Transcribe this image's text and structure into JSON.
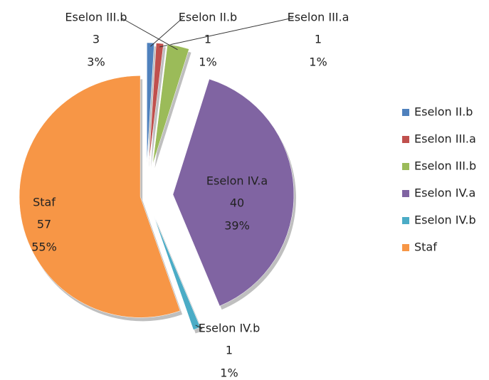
{
  "chart_data": {
    "type": "pie",
    "categories": [
      "Eselon II.b",
      "Eselon III.a",
      "Eselon III.b",
      "Eselon IV.a",
      "Eselon IV.b",
      "Staf"
    ],
    "values": [
      1,
      1,
      3,
      40,
      1,
      57
    ],
    "percent_labels": [
      "1%",
      "1%",
      "3%",
      "39%",
      "1%",
      "55%"
    ],
    "colors": [
      "#4f81bd",
      "#c0504d",
      "#9bbb59",
      "#8064a2",
      "#4bacc6",
      "#f79646"
    ],
    "legend": "right"
  }
}
